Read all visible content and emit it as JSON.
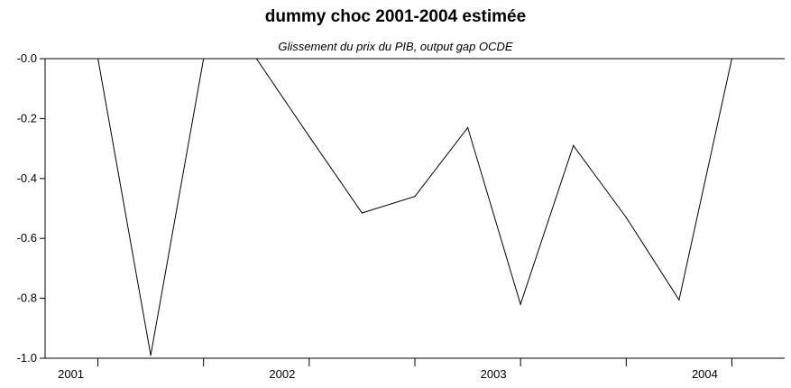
{
  "chart_data": {
    "type": "line",
    "title": "dummy choc 2001-2004 estimée",
    "subtitle": "Glissement du prix du PIB, output gap OCDE",
    "xlabel": "",
    "ylabel": "",
    "ylim": [
      -1.0,
      0.0
    ],
    "yticks": [
      "-0.0",
      "-0.2",
      "-0.4",
      "-0.6",
      "-0.8",
      "-1.0"
    ],
    "ytick_values": [
      0.0,
      -0.2,
      -0.4,
      -0.6,
      -0.8,
      -1.0
    ],
    "xlim": [
      2000.75,
      2004.25
    ],
    "x_tick_labels": [
      "2001",
      "2002",
      "2003",
      "2004"
    ],
    "x_tick_values": [
      2001.0,
      2002.0,
      2003.0,
      2004.0
    ],
    "x_minor_ticks": [
      2001.5,
      2002.5,
      2003.5
    ],
    "x": [
      2001.0,
      2001.25,
      2001.5,
      2001.75,
      2002.0,
      2002.25,
      2002.5,
      2002.75,
      2003.0,
      2003.25,
      2003.5,
      2003.75,
      2004.0
    ],
    "series": [
      {
        "values": [
          0.0,
          -0.99,
          0.0,
          0.0,
          -0.26,
          -0.515,
          -0.46,
          -0.23,
          -0.82,
          -0.29,
          -0.53,
          -0.805,
          0.0
        ],
        "color": "#000000"
      }
    ],
    "grid": false,
    "legend": "none"
  }
}
